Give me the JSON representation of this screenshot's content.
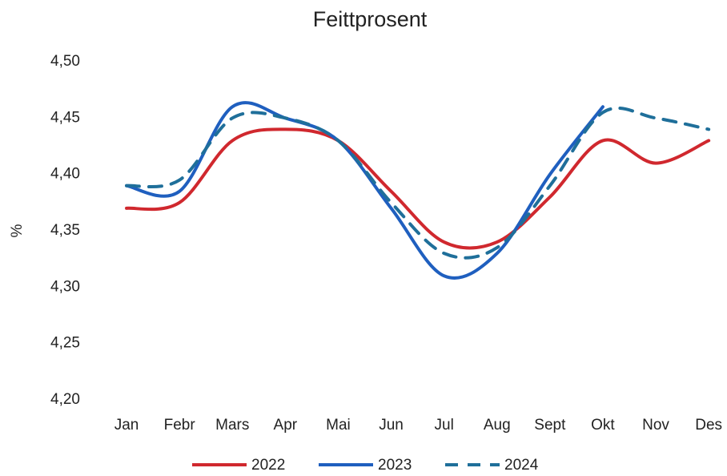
{
  "chart_data": {
    "type": "line",
    "title": "Feittprosent",
    "y_label": "%",
    "categories": [
      "Jan",
      "Febr",
      "Mars",
      "Apr",
      "Mai",
      "Jun",
      "Jul",
      "Aug",
      "Sept",
      "Okt",
      "Nov",
      "Des"
    ],
    "series": [
      {
        "name": "2022",
        "color": "#d0282e",
        "dashed": false,
        "values": [
          4.37,
          4.375,
          4.43,
          4.44,
          4.43,
          4.385,
          4.34,
          4.34,
          4.38,
          4.43,
          4.41,
          4.43
        ]
      },
      {
        "name": "2023",
        "color": "#1f5fbf",
        "dashed": false,
        "values": [
          4.39,
          4.385,
          4.46,
          4.45,
          4.43,
          4.37,
          4.31,
          4.33,
          4.4,
          4.46,
          null,
          null
        ]
      },
      {
        "name": "2024",
        "color": "#1f6f9a",
        "dashed": true,
        "values": [
          4.39,
          4.395,
          4.45,
          4.45,
          4.43,
          4.375,
          4.33,
          4.335,
          4.39,
          4.455,
          4.45,
          4.44
        ]
      }
    ],
    "ylim": [
      4.2,
      4.5
    ],
    "yticks": [
      {
        "value": 4.2,
        "label": "4,20"
      },
      {
        "value": 4.25,
        "label": "4,25"
      },
      {
        "value": 4.3,
        "label": "4,30"
      },
      {
        "value": 4.35,
        "label": "4,35"
      },
      {
        "value": 4.4,
        "label": "4,40"
      },
      {
        "value": 4.45,
        "label": "4,45"
      },
      {
        "value": 4.5,
        "label": "4,50"
      }
    ],
    "grid": false,
    "legend": "bottom"
  }
}
